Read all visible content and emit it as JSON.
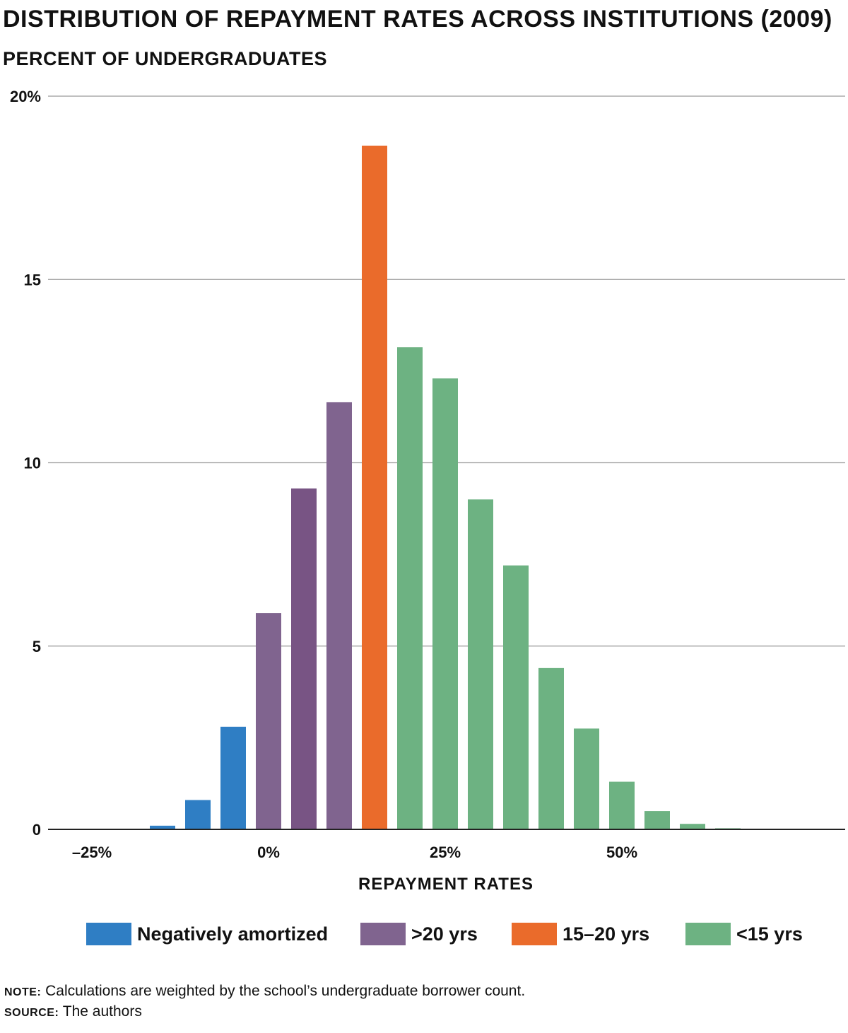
{
  "title": "DISTRIBUTION OF REPAYMENT RATES ACROSS INSTITUTIONS (2009)",
  "subtitle": "PERCENT OF UNDERGRADUATES",
  "notes": {
    "note_key": "NOTE:",
    "note_text": "Calculations are weighted by the school’s undergraduate borrower count.",
    "source_key": "SOURCE:",
    "source_text": "The authors"
  },
  "chart_data": {
    "type": "bar",
    "title": "DISTRIBUTION OF REPAYMENT RATES ACROSS INSTITUTIONS (2009)",
    "ylabel": "PERCENT OF UNDERGRADUATES",
    "xlabel": "REPAYMENT RATES",
    "ylim": [
      0,
      20
    ],
    "xlim": [
      -30,
      80
    ],
    "yticks": [
      {
        "value": 0,
        "label": "0"
      },
      {
        "value": 5,
        "label": "5"
      },
      {
        "value": 10,
        "label": "10"
      },
      {
        "value": 15,
        "label": "15"
      },
      {
        "value": 20,
        "label": "20%"
      }
    ],
    "xticks": [
      {
        "value": -25,
        "label": "–25%"
      },
      {
        "value": 0,
        "label": "0%"
      },
      {
        "value": 25,
        "label": "25%"
      },
      {
        "value": 50,
        "label": "50%"
      }
    ],
    "grid": true,
    "legend_position": "bottom",
    "categories_legend": [
      {
        "key": "neg",
        "label": "Negatively amortized",
        "color": "#2f7ec4"
      },
      {
        "key": "gt20",
        "label": ">20 yrs",
        "color": "#80648f"
      },
      {
        "key": "y15_20",
        "label": "15–20 yrs",
        "color": "#ea6b2b"
      },
      {
        "key": "lt15",
        "label": "<15 yrs",
        "color": "#6db282"
      }
    ],
    "bars": [
      {
        "x": -15,
        "value": 0.1,
        "group": "neg"
      },
      {
        "x": -10,
        "value": 0.8,
        "group": "neg"
      },
      {
        "x": -5,
        "value": 2.8,
        "group": "neg"
      },
      {
        "x": 0,
        "value": 5.9,
        "group": "gt20"
      },
      {
        "x": 5,
        "value": 9.3,
        "group": "gt20",
        "color": "#785484"
      },
      {
        "x": 10,
        "value": 11.65,
        "group": "gt20"
      },
      {
        "x": 15,
        "value": 18.65,
        "group": "y15_20"
      },
      {
        "x": 20,
        "value": 13.15,
        "group": "lt15"
      },
      {
        "x": 25,
        "value": 12.3,
        "group": "lt15"
      },
      {
        "x": 30,
        "value": 9.0,
        "group": "lt15"
      },
      {
        "x": 35,
        "value": 7.2,
        "group": "lt15"
      },
      {
        "x": 40,
        "value": 4.4,
        "group": "lt15"
      },
      {
        "x": 45,
        "value": 2.75,
        "group": "lt15"
      },
      {
        "x": 50,
        "value": 1.3,
        "group": "lt15"
      },
      {
        "x": 55,
        "value": 0.5,
        "group": "lt15"
      },
      {
        "x": 60,
        "value": 0.15,
        "group": "lt15"
      },
      {
        "x": 65,
        "value": 0.03,
        "group": "lt15"
      }
    ]
  }
}
